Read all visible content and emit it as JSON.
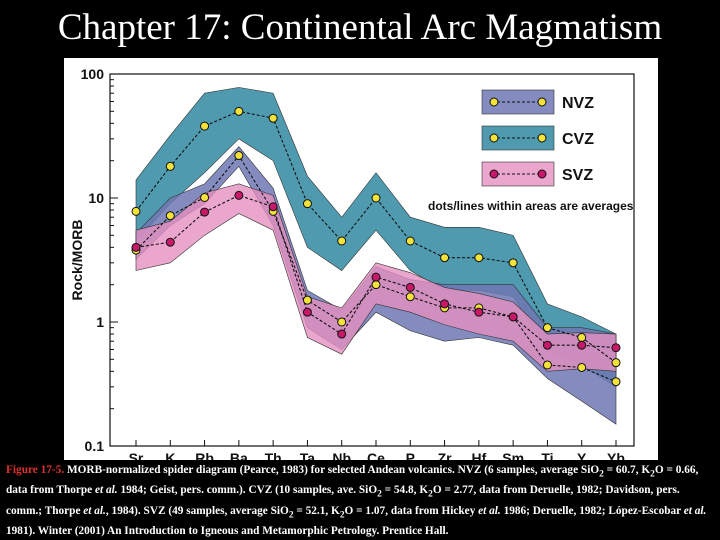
{
  "slide_title": "Chapter 17: Continental Arc Magmatism",
  "caption": {
    "figure_number": "Figure 17-5.",
    "text_1": " MORB-normalized spider diagram (Pearce, 1983) for selected Andean volcanics. NVZ (6 samples, average SiO",
    "sub_2a": "2",
    "text_2": " = 60.7, K",
    "sub_2b": "2",
    "text_3": "O = 0.66, data from Thorpe ",
    "et_al_1": "et al.",
    "text_4": " 1984; Geist, pers. comm.). CVZ (10 samples, ave. SiO",
    "sub_2c": "2",
    "text_5": " = 54.8, K",
    "sub_2d": "2",
    "text_6": "O = 2.77, data from Deruelle, 1982; Davidson, pers. comm.; Thorpe ",
    "et_al_2": "et al.",
    "text_7": ", 1984). SVZ (49 samples, average SiO",
    "sub_2e": "2",
    "text_8": " = 52.1, K",
    "sub_2f": "2",
    "text_9": "O = 1.07, data from Hickey ",
    "et_al_3": "et al.",
    "text_10": " 1986; Deruelle, 1982; López-Escobar ",
    "et_al_4": "et al.",
    "text_11": " 1981). Winter (2001) An Introduction to Igneous and Metamorphic Petrology. Prentice Hall."
  },
  "colors": {
    "nvz_fill": "#6f78b4",
    "cvz_fill": "#3d8fa6",
    "svz_fill": "#e590c0",
    "nvz_marker": "#f2e23a",
    "cvz_marker": "#f2e23a",
    "svz_marker": "#c8186a"
  },
  "chart_data": {
    "type": "line",
    "title": "",
    "xlabel": "",
    "ylabel": "Rock/MORB",
    "y_scale": "log",
    "ylim": [
      0.1,
      100
    ],
    "yticks": [
      "0.1",
      "1",
      "10",
      "100"
    ],
    "categories": [
      "Sr",
      "K",
      "Rb",
      "Ba",
      "Th",
      "Ta",
      "Nb",
      "Ce",
      "P",
      "Zr",
      "Hf",
      "Sm",
      "Ti",
      "Y",
      "Yb"
    ],
    "series": [
      {
        "name": "NVZ",
        "values": [
          3.8,
          7.2,
          10.1,
          22,
          7.8,
          1.5,
          1.0,
          2.0,
          1.6,
          1.3,
          1.3,
          1.1,
          0.45,
          0.43,
          0.33
        ],
        "band_upper": [
          5.2,
          10,
          13,
          26,
          12,
          1.8,
          1.25,
          2.8,
          2.2,
          2.0,
          2.0,
          2.0,
          0.9,
          0.9,
          0.8
        ],
        "band_lower": [
          3.2,
          6.0,
          9.0,
          18,
          6.0,
          0.9,
          0.6,
          1.2,
          0.85,
          0.7,
          0.75,
          0.65,
          0.35,
          0.23,
          0.15
        ]
      },
      {
        "name": "CVZ",
        "values": [
          7.8,
          18,
          38,
          50,
          44,
          9,
          4.5,
          10,
          4.5,
          3.3,
          3.3,
          3.0,
          0.9,
          0.75,
          0.47
        ],
        "band_upper": [
          14,
          32,
          70,
          78,
          70,
          15,
          7,
          16,
          7,
          5.8,
          5.8,
          5.0,
          1.4,
          1.1,
          0.8
        ],
        "band_lower": [
          4.5,
          9,
          16,
          30,
          20,
          4.0,
          2.6,
          5.5,
          2.6,
          1.8,
          1.8,
          1.6,
          0.6,
          0.45,
          0.3
        ]
      },
      {
        "name": "SVZ",
        "values": [
          4.0,
          4.4,
          7.7,
          10.5,
          8.5,
          1.2,
          0.8,
          2.3,
          1.9,
          1.4,
          1.2,
          1.1,
          0.65,
          0.65,
          0.62
        ],
        "band_upper": [
          5.5,
          6.5,
          11,
          13,
          10.5,
          1.6,
          1.3,
          3.0,
          2.5,
          1.9,
          1.7,
          1.45,
          0.8,
          0.82,
          0.8
        ],
        "band_lower": [
          2.6,
          3.0,
          5.0,
          7.5,
          5.5,
          0.75,
          0.55,
          1.4,
          1.2,
          0.95,
          0.8,
          0.7,
          0.4,
          0.42,
          0.4
        ]
      }
    ],
    "legend": {
      "placement": "top-right",
      "entries": [
        "NVZ",
        "CVZ",
        "SVZ"
      ],
      "note": "dots/lines within areas are averages"
    }
  }
}
